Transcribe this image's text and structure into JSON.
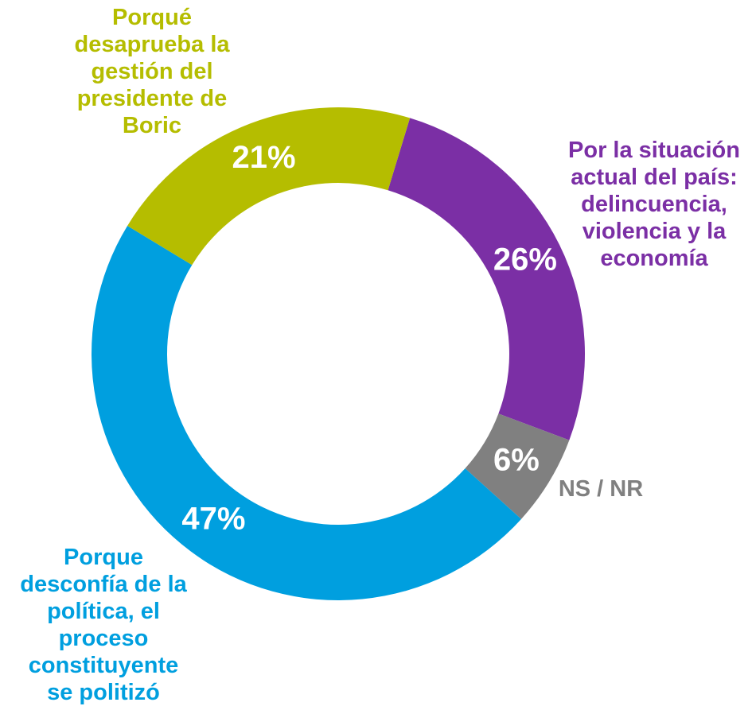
{
  "chart_data": {
    "type": "donut",
    "categories": [
      "Por la situación actual del país: delincuencia, violencia y la economía",
      "NS / NR",
      "Porque desconfía de la política, el proceso constituyente se politizó",
      "Porqué desaprueba la gestión del presidente de Boric"
    ],
    "values": [
      26,
      6,
      47,
      21
    ],
    "value_labels": [
      "26%",
      "6%",
      "47%",
      "21%"
    ],
    "colors": [
      "#7b2fa5",
      "#808080",
      "#009fdf",
      "#b5bd00"
    ]
  }
}
